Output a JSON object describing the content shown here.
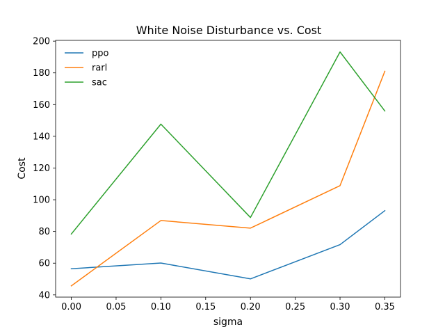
{
  "chart_data": {
    "type": "line",
    "title": "White Noise Disturbance vs. Cost",
    "xlabel": "sigma",
    "ylabel": "Cost",
    "x": [
      0.0,
      0.1,
      0.2,
      0.3,
      0.35
    ],
    "xticks": [
      0.0,
      0.05,
      0.1,
      0.15,
      0.2,
      0.25,
      0.3,
      0.35
    ],
    "xtick_labels": [
      "0.00",
      "0.05",
      "0.10",
      "0.15",
      "0.20",
      "0.25",
      "0.30",
      "0.35"
    ],
    "yticks": [
      40,
      60,
      80,
      100,
      120,
      140,
      160,
      180,
      200
    ],
    "yticks_labels": [
      "40",
      "60",
      "80",
      "100",
      "120",
      "140",
      "160",
      "180",
      "200"
    ],
    "xlim": [
      -0.0175,
      0.3675
    ],
    "ylim": [
      38.6,
      200.5
    ],
    "grid": false,
    "legend_position": "top-left",
    "series": [
      {
        "name": "ppo",
        "color": "#1f77b4",
        "values": [
          56.5,
          60.1,
          50.1,
          71.7,
          93.1
        ]
      },
      {
        "name": "rarl",
        "color": "#ff7f0e",
        "values": [
          45.7,
          86.9,
          82.1,
          108.9,
          181.0
        ]
      },
      {
        "name": "sac",
        "color": "#2ca02c",
        "values": [
          78.4,
          147.7,
          88.8,
          193.2,
          156.0
        ]
      }
    ]
  }
}
